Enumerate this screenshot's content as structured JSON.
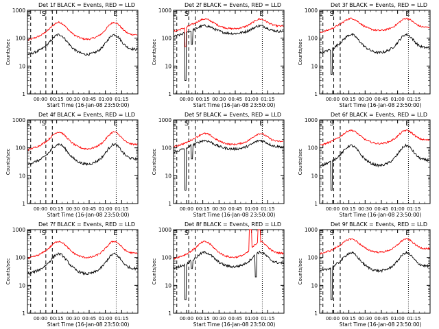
{
  "chart_data": [
    {
      "type": "line",
      "title": "Det 1f BLACK = Events, RED = LLD",
      "ylabel": "Counts/sec",
      "xlabel": "Start Time (16-Jan-08 23:50:00)",
      "xticks": [
        "00:00",
        "00:15",
        "00:30",
        "00:45",
        "01:00",
        "01:15"
      ],
      "yticks": [
        "1",
        "10",
        "100",
        "1000"
      ],
      "ylim": [
        1,
        1000
      ],
      "yscale": "log",
      "markers": [
        {
          "label": "E",
          "t": -9
        },
        {
          "label": "S",
          "t": 5
        },
        {
          "label": "E",
          "t": 70
        }
      ],
      "red_base": 160,
      "red_amp": 0.28,
      "black_base": 50,
      "black_amp": 0.33,
      "dips": [],
      "spikes": [],
      "dips_red": []
    },
    {
      "type": "line",
      "title": "Det 2f BLACK = Events, RED = LLD",
      "ylabel": "Counts/sec",
      "xlabel": "Start Time (16-Jan-08 23:50:00)",
      "xticks": [
        "00:00",
        "00:15",
        "00:30",
        "00:45",
        "01:00",
        "01:15"
      ],
      "yticks": [
        "1",
        "10",
        "100",
        "1000"
      ],
      "ylim": [
        1,
        1000
      ],
      "yscale": "log",
      "markers": [
        {
          "label": "E",
          "t": -9
        },
        {
          "label": "S",
          "t": 2
        },
        {
          "label": "E",
          "t": 70
        }
      ],
      "red_base": 300,
      "red_amp": 0.16,
      "black_base": 190,
      "black_amp": 0.13,
      "dips": [
        {
          "t": -1,
          "v": 3
        },
        {
          "t": 5,
          "v": 60
        }
      ],
      "spikes": [],
      "dips_red": [
        {
          "t": -1,
          "v": 50
        }
      ]
    },
    {
      "type": "line",
      "title": "Det 3f BLACK = Events, RED = LLD",
      "ylabel": "Counts/sec",
      "xlabel": "Start Time (16-Jan-08 23:50:00)",
      "xticks": [
        "00:00",
        "00:15",
        "00:30",
        "00:45",
        "01:00",
        "01:15"
      ],
      "yticks": [
        "1",
        "10",
        "100",
        "1000"
      ],
      "ylim": [
        1,
        1000
      ],
      "yscale": "log",
      "markers": [
        {
          "label": "E",
          "t": -9
        },
        {
          "label": "S",
          "t": 1
        },
        {
          "label": "E",
          "t": 70
        }
      ],
      "red_base": 280,
      "red_amp": 0.2,
      "black_base": 55,
      "black_amp": 0.3,
      "dips": [
        {
          "t": -1,
          "v": 5
        }
      ],
      "spikes": [],
      "dips_red": []
    },
    {
      "type": "line",
      "title": "Det 4f BLACK = Events, RED = LLD",
      "ylabel": "Counts/sec",
      "xlabel": "Start Time (16-Jan-08 23:50:00)",
      "xticks": [
        "00:00",
        "00:15",
        "00:30",
        "00:45",
        "01:00",
        "01:15"
      ],
      "yticks": [
        "1",
        "10",
        "100",
        "1000"
      ],
      "ylim": [
        1,
        1000
      ],
      "yscale": "log",
      "markers": [
        {
          "label": "E",
          "t": -9
        },
        {
          "label": "S",
          "t": 5
        },
        {
          "label": "E",
          "t": 70
        }
      ],
      "red_base": 160,
      "red_amp": 0.28,
      "black_base": 50,
      "black_amp": 0.33,
      "dips": [],
      "spikes": [],
      "dips_red": []
    },
    {
      "type": "line",
      "title": "Det 5f BLACK = Events, RED = LLD",
      "ylabel": "Counts/sec",
      "xlabel": "Start Time (16-Jan-08 23:50:00)",
      "xticks": [
        "00:00",
        "00:15",
        "00:30",
        "00:45",
        "01:00",
        "01:15"
      ],
      "yticks": [
        "1",
        "10",
        "100",
        "1000"
      ],
      "ylim": [
        1,
        1000
      ],
      "yscale": "log",
      "markers": [
        {
          "label": "E",
          "t": -9
        },
        {
          "label": "S",
          "t": 2
        },
        {
          "label": "E",
          "t": 70
        }
      ],
      "red_base": 190,
      "red_amp": 0.18,
      "black_base": 120,
      "black_amp": 0.14,
      "dips": [
        {
          "t": -1,
          "v": 3
        },
        {
          "t": 5,
          "v": 40
        }
      ],
      "spikes": [],
      "dips_red": []
    },
    {
      "type": "line",
      "title": "Det 6f BLACK = Events, RED = LLD",
      "ylabel": "Counts/sec",
      "xlabel": "Start Time (16-Jan-08 23:50:00)",
      "xticks": [
        "00:00",
        "00:15",
        "00:30",
        "00:45",
        "01:00",
        "01:15"
      ],
      "yticks": [
        "1",
        "10",
        "100",
        "1000"
      ],
      "ylim": [
        1,
        1000
      ],
      "yscale": "log",
      "markers": [
        {
          "label": "E",
          "t": -9
        },
        {
          "label": "S",
          "t": 1
        },
        {
          "label": "E",
          "t": 70
        }
      ],
      "red_base": 220,
      "red_amp": 0.22,
      "black_base": 45,
      "black_amp": 0.33,
      "dips": [
        {
          "t": -1,
          "v": 3
        }
      ],
      "spikes": [],
      "dips_red": []
    },
    {
      "type": "line",
      "title": "Det 7f BLACK = Events, RED = LLD",
      "ylabel": "Counts/sec",
      "xlabel": "Start Time (16-Jan-08 23:50:00)",
      "xticks": [
        "00:00",
        "00:15",
        "00:30",
        "00:45",
        "01:00",
        "01:15"
      ],
      "yticks": [
        "1",
        "10",
        "100",
        "1000"
      ],
      "ylim": [
        1,
        1000
      ],
      "yscale": "log",
      "markers": [
        {
          "label": "E",
          "t": -9
        },
        {
          "label": "S",
          "t": 5
        },
        {
          "label": "E",
          "t": 70
        }
      ],
      "red_base": 170,
      "red_amp": 0.27,
      "black_base": 50,
      "black_amp": 0.33,
      "dips": [],
      "spikes": [],
      "dips_red": []
    },
    {
      "type": "line",
      "title": "Det 8f BLACK = Events, RED = LLD",
      "ylabel": "Counts/sec",
      "xlabel": "Start Time (16-Jan-08 23:50:00)",
      "xticks": [
        "00:00",
        "00:15",
        "00:30",
        "00:45",
        "01:00",
        "01:15"
      ],
      "yticks": [
        "1",
        "10",
        "100",
        "1000"
      ],
      "ylim": [
        1,
        1000
      ],
      "yscale": "log",
      "markers": [
        {
          "label": "E",
          "t": -9
        },
        {
          "label": "S",
          "t": 2
        },
        {
          "label": "E",
          "t": 70
        }
      ],
      "red_base": 170,
      "red_amp": 0.26,
      "black_base": 75,
      "black_amp": 0.24,
      "dips": [
        {
          "t": -1,
          "v": 3
        },
        {
          "t": 5,
          "v": 40
        },
        {
          "t": 64,
          "v": 20
        }
      ],
      "spikes": [
        {
          "t": 58,
          "t2": 60,
          "v": 1000
        },
        {
          "t": 66,
          "t2": 68,
          "v": 1000
        }
      ],
      "dips_red": []
    },
    {
      "type": "line",
      "title": "Det 9f BLACK = Events, RED = LLD",
      "ylabel": "Counts/sec",
      "xlabel": "Start Time (16-Jan-08 23:50:00)",
      "xticks": [
        "00:00",
        "00:15",
        "00:30",
        "00:45",
        "01:00",
        "01:15"
      ],
      "yticks": [
        "1",
        "10",
        "100",
        "1000"
      ],
      "ylim": [
        1,
        1000
      ],
      "yscale": "log",
      "markers": [
        {
          "label": "E",
          "t": -9
        },
        {
          "label": "S",
          "t": 1
        },
        {
          "label": "E",
          "t": 70
        }
      ],
      "red_base": 240,
      "red_amp": 0.22,
      "black_base": 60,
      "black_amp": 0.3,
      "dips": [
        {
          "t": -1,
          "v": 3
        }
      ],
      "spikes": [],
      "dips_red": []
    }
  ],
  "colors": {
    "events": "#000000",
    "lld": "#ff0000",
    "axis": "#000000",
    "background": "#ffffff"
  }
}
